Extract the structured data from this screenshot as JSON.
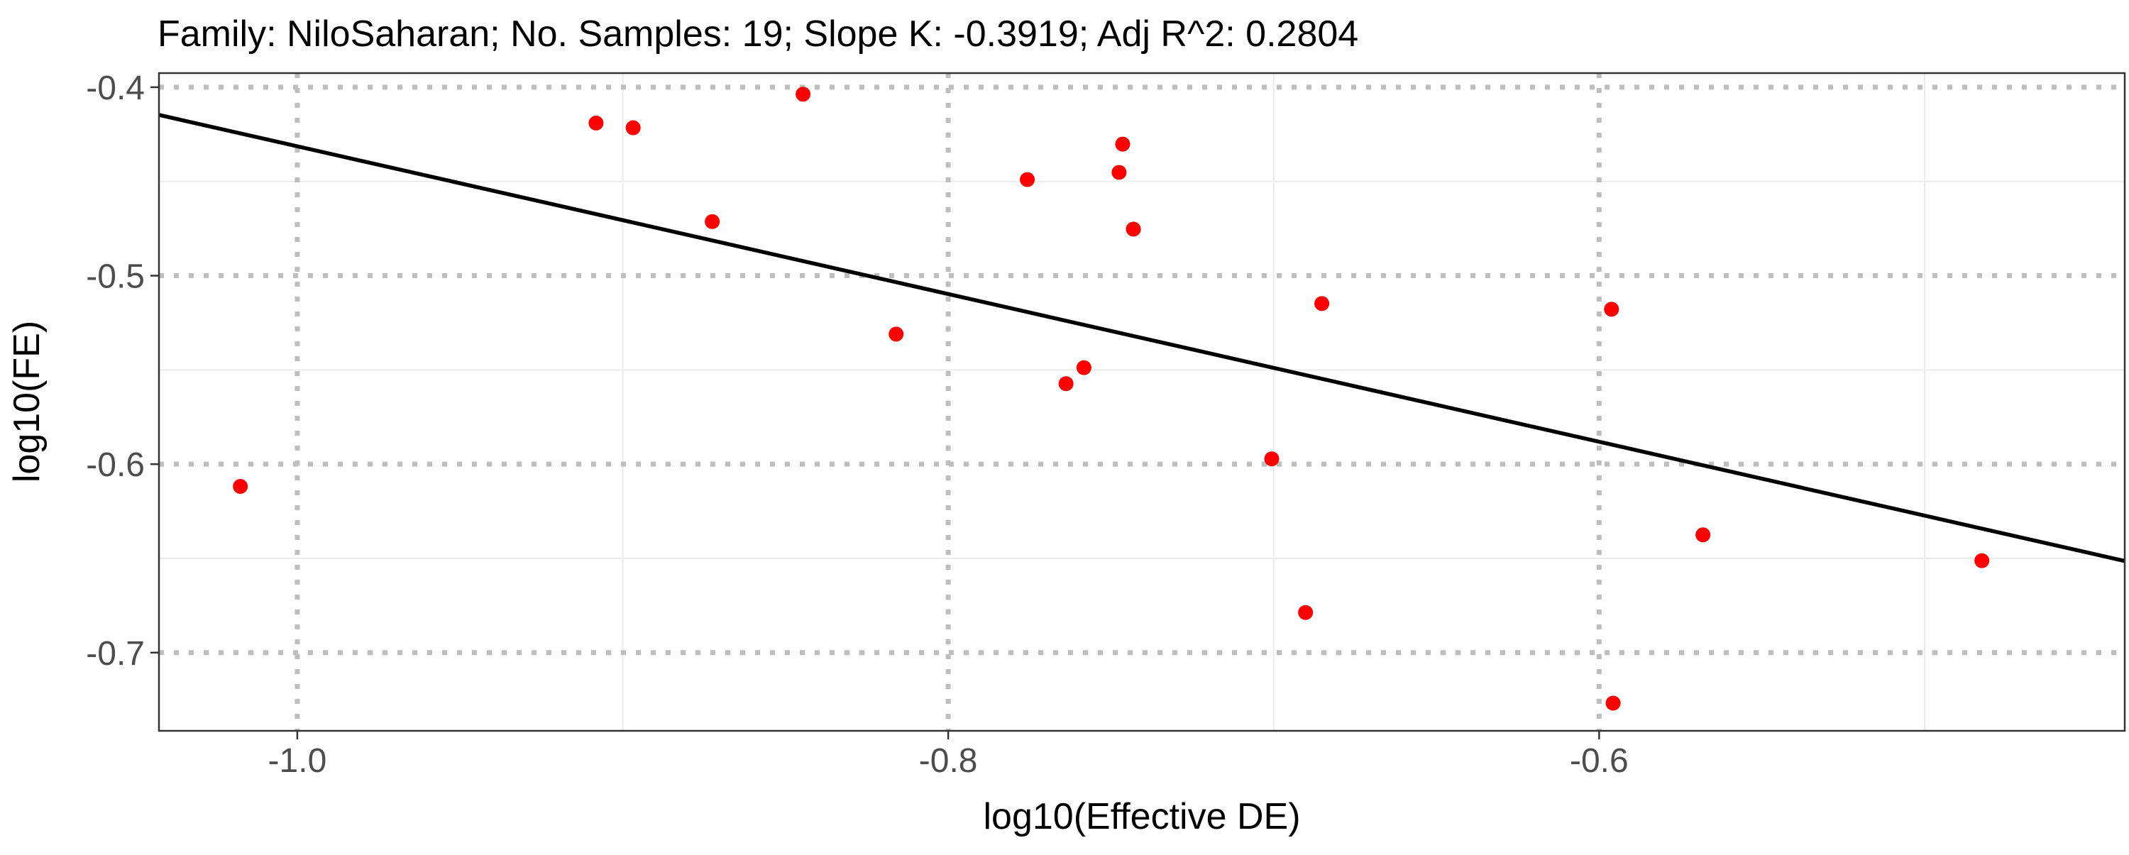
{
  "chart_data": {
    "type": "scatter",
    "title": "Family: NiloSaharan; No. Samples: 19; Slope K: -0.3919; Adj R^2: 0.2804",
    "xlabel": "log10(Effective DE)",
    "ylabel": "log10(FE)",
    "xlim": [
      -1.0425,
      -0.4385
    ],
    "ylim": [
      -0.7415,
      -0.3925
    ],
    "x_ticks": [
      -1.0,
      -0.8,
      -0.6
    ],
    "x_tick_labels": [
      "-1.0",
      "-0.8",
      "-0.6"
    ],
    "y_ticks": [
      -0.4,
      -0.5,
      -0.6,
      -0.7
    ],
    "y_tick_labels": [
      "-0.4",
      "-0.5",
      "-0.6",
      "-0.7"
    ],
    "x_minor_ticks": [
      -0.9,
      -0.7,
      -0.5
    ],
    "y_minor_ticks": [
      -0.45,
      -0.55,
      -0.65
    ],
    "grid": true,
    "points": [
      {
        "x": -1.0175,
        "y": -0.6118
      },
      {
        "x": -0.9082,
        "y": -0.419
      },
      {
        "x": -0.8968,
        "y": -0.4215
      },
      {
        "x": -0.8725,
        "y": -0.4713
      },
      {
        "x": -0.8446,
        "y": -0.4037
      },
      {
        "x": -0.816,
        "y": -0.531
      },
      {
        "x": -0.7757,
        "y": -0.449
      },
      {
        "x": -0.7638,
        "y": -0.5573
      },
      {
        "x": -0.7583,
        "y": -0.5488
      },
      {
        "x": -0.7464,
        "y": -0.4302
      },
      {
        "x": -0.7475,
        "y": -0.4452
      },
      {
        "x": -0.7431,
        "y": -0.4753
      },
      {
        "x": -0.6852,
        "y": -0.5148
      },
      {
        "x": -0.7006,
        "y": -0.5972
      },
      {
        "x": -0.6902,
        "y": -0.6787
      },
      {
        "x": -0.5962,
        "y": -0.5178
      },
      {
        "x": -0.5957,
        "y": -0.7268
      },
      {
        "x": -0.5681,
        "y": -0.6375
      },
      {
        "x": -0.4824,
        "y": -0.6512
      }
    ],
    "fit_line": {
      "slope": -0.3919,
      "x": [
        -1.0425,
        -0.4385
      ],
      "y": [
        -0.4147,
        -0.6514
      ]
    },
    "colors": {
      "points": "#ff0000",
      "fit_line": "#000000",
      "major_grid": "#bebebe",
      "minor_grid": "#ebebeb",
      "panel_border": "#333333",
      "tick_labels": "#4d4d4d"
    }
  }
}
